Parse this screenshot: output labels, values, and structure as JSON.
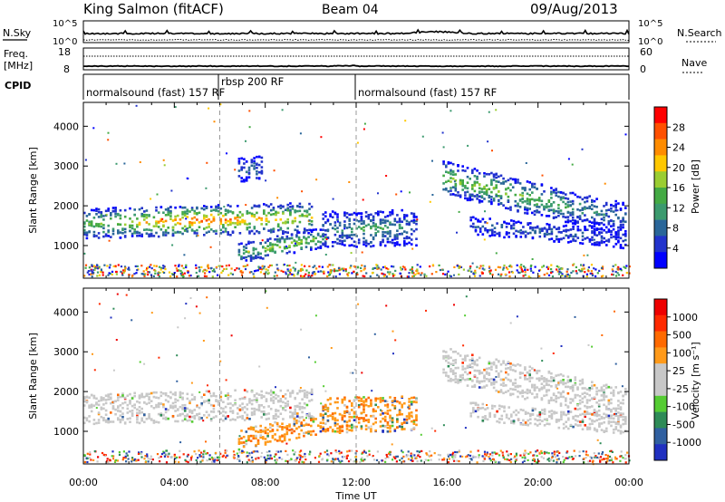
{
  "header": {
    "station": "King Salmon (fitACF)",
    "beam": "Beam 04",
    "date": "09/Aug/2013"
  },
  "strip_labels": {
    "nsky": "N.Sky",
    "nsearch": "N.Search",
    "freq_line1": "Freq.",
    "freq_line2": "[MHz]",
    "nave": "Nave",
    "cpid": "CPID",
    "noise_ticks_left": [
      "10^5",
      "10^0"
    ],
    "noise_ticks_right": [
      "10^5",
      "10^0"
    ],
    "freq_ticks": [
      "18",
      "8"
    ],
    "nave_ticks": [
      "60",
      "0"
    ]
  },
  "cpid_segments": [
    {
      "label": "normalsound (fast) 157 RF",
      "start_hour": 0
    },
    {
      "label": "rbsp 200 RF",
      "start_hour": 6
    },
    {
      "label": "normalsound (fast) 157 RF",
      "start_hour": 12
    }
  ],
  "x_axis": {
    "label": "Time UT",
    "range_hours": [
      0,
      24
    ],
    "ticks": [
      {
        "h": 0,
        "label": "00:00"
      },
      {
        "h": 4,
        "label": "04:00"
      },
      {
        "h": 8,
        "label": "08:00"
      },
      {
        "h": 12,
        "label": "12:00"
      },
      {
        "h": 16,
        "label": "16:00"
      },
      {
        "h": 20,
        "label": "20:00"
      },
      {
        "h": 24,
        "label": "00:00"
      }
    ]
  },
  "dashed_times_hours": [
    6,
    12
  ],
  "chart_data": [
    {
      "type": "heatmap",
      "name": "power",
      "ylabel": "Slant Range [km]",
      "ylim": [
        180,
        4600
      ],
      "y_ticks": [
        1000,
        2000,
        3000,
        4000
      ],
      "colorbar": {
        "label": "Power [dB]",
        "range": [
          0,
          32
        ],
        "ticks": [
          "4",
          "8",
          "12",
          "16",
          "20",
          "24",
          "28"
        ],
        "colors": [
          "#0000ff",
          "#2233cc",
          "#2a6699",
          "#3b9a6e",
          "#44aa44",
          "#9acd32",
          "#ffc800",
          "#ff8c00",
          "#ff5000",
          "#ff0000"
        ]
      },
      "bands": [
        {
          "t0": 0.0,
          "t1": 10.0,
          "r_center_start": 1550,
          "r_center_end": 1700,
          "width": 380,
          "level_start": 0.45,
          "level_peak": 0.85,
          "level_end": 0.6
        },
        {
          "t0": 6.8,
          "t1": 10.6,
          "r_center_start": 800,
          "r_center_end": 1200,
          "width": 260,
          "level_start": 0.35,
          "level_peak": 0.65,
          "level_end": 0.4
        },
        {
          "t0": 10.5,
          "t1": 14.6,
          "r_center_start": 1400,
          "r_center_end": 1450,
          "width": 450,
          "level_start": 0.25,
          "level_peak": 0.45,
          "level_end": 0.25
        },
        {
          "t0": 15.8,
          "t1": 23.8,
          "r_center_start": 2700,
          "r_center_end": 1650,
          "width": 420,
          "level_start": 0.55,
          "level_peak": 0.5,
          "level_end": 0.2
        },
        {
          "t0": 17.0,
          "t1": 23.8,
          "r_center_start": 1500,
          "r_center_end": 1150,
          "width": 220,
          "level_start": 0.2,
          "level_peak": 0.25,
          "level_end": 0.15
        },
        {
          "t0": 6.8,
          "t1": 7.8,
          "r_center_start": 2900,
          "r_center_end": 2950,
          "width": 300,
          "level_start": 0.2,
          "level_peak": 0.3,
          "level_end": 0.2
        }
      ]
    },
    {
      "type": "heatmap",
      "name": "velocity",
      "ylabel": "Slant Range [km]",
      "ylim": [
        180,
        4600
      ],
      "y_ticks": [
        1000,
        2000,
        3000,
        4000
      ],
      "colorbar": {
        "label": "Velocity [m s⁻¹]",
        "ticks": [
          "1000",
          "500",
          "100",
          "25",
          "-25",
          "-100",
          "-500",
          "-1000"
        ],
        "colors": [
          "#2030c0",
          "#3060a0",
          "#2e8b57",
          "#55cc33",
          "#c8c8c8",
          "#c8c8c8",
          "#ff9a1a",
          "#ff6a00",
          "#ff2a00",
          "#ee0000"
        ]
      },
      "bands": [
        {
          "t0": 0.0,
          "t1": 10.0,
          "r_center_start": 1550,
          "r_center_end": 1700,
          "width": 380,
          "vclass": "gray"
        },
        {
          "t0": 6.8,
          "t1": 10.6,
          "r_center_start": 800,
          "r_center_end": 1200,
          "width": 260,
          "vclass": "orange"
        },
        {
          "t0": 10.5,
          "t1": 14.6,
          "r_center_start": 1400,
          "r_center_end": 1450,
          "width": 450,
          "vclass": "orange"
        },
        {
          "t0": 15.8,
          "t1": 23.8,
          "r_center_start": 2700,
          "r_center_end": 1650,
          "width": 420,
          "vclass": "gray"
        },
        {
          "t0": 17.0,
          "t1": 23.8,
          "r_center_start": 1500,
          "r_center_end": 1150,
          "width": 220,
          "vclass": "gray"
        }
      ]
    }
  ]
}
